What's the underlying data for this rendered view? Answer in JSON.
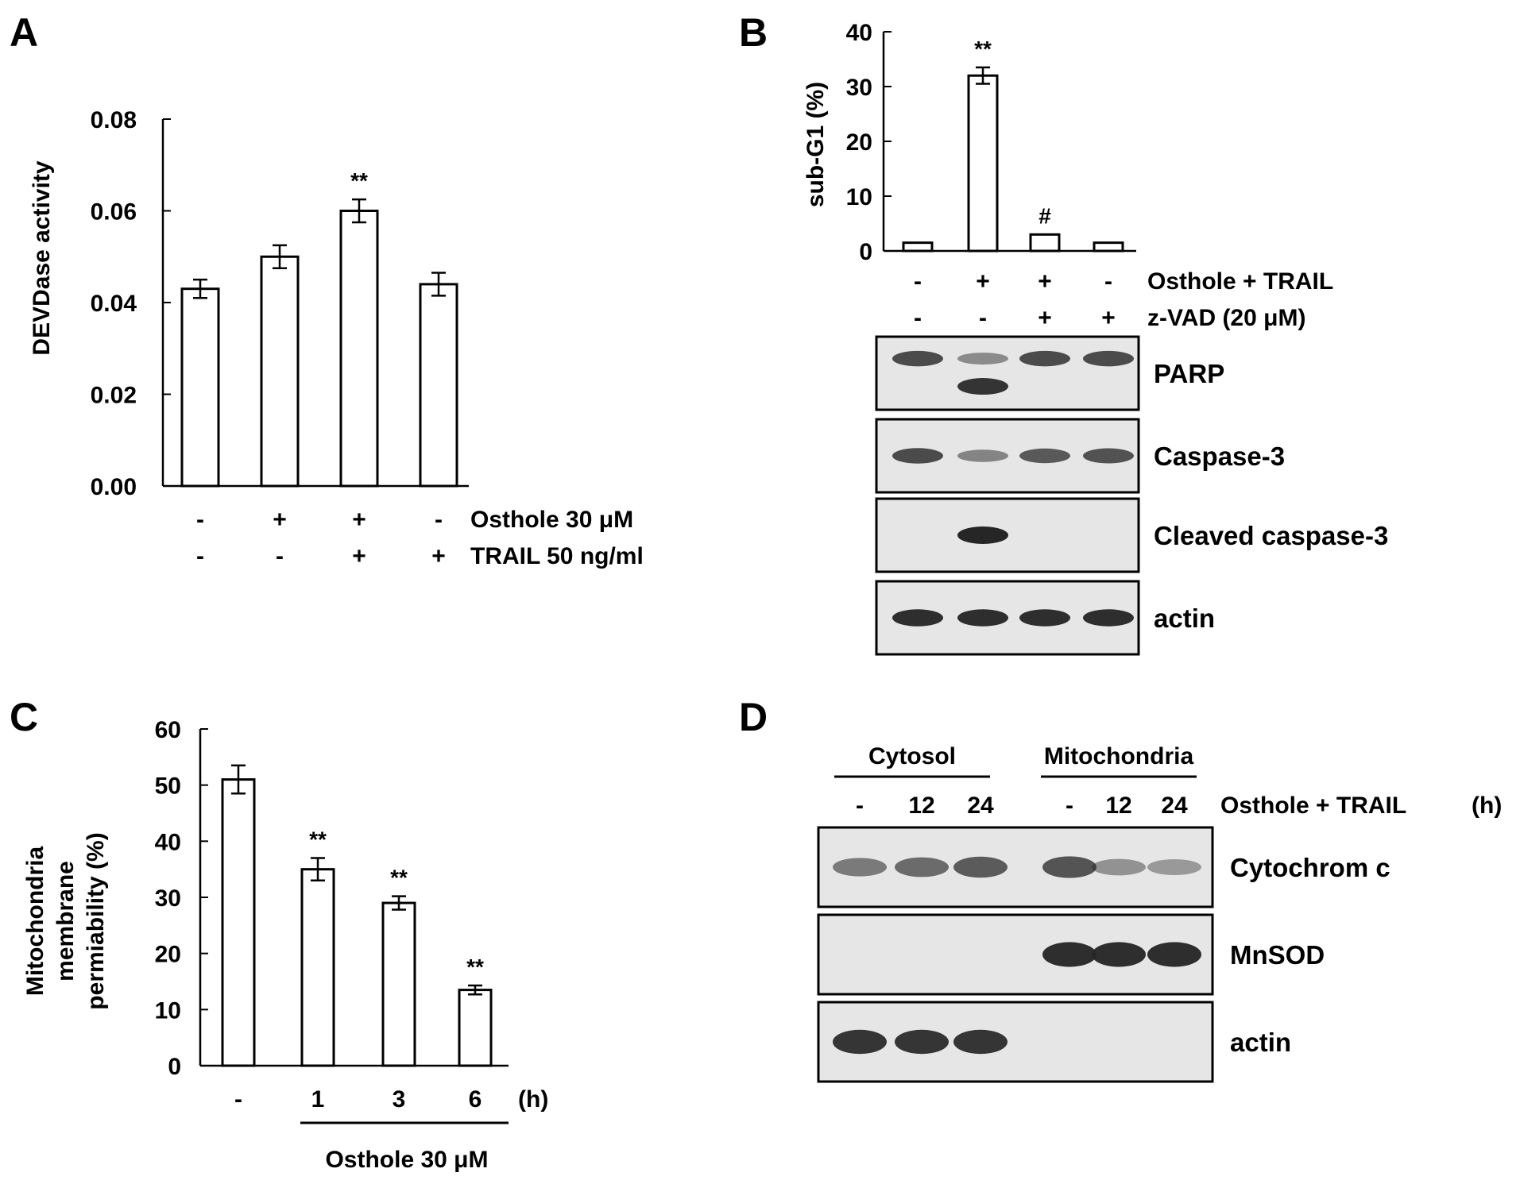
{
  "colors": {
    "ink": "#000000",
    "bar_fill": "#ffffff",
    "blot_bg": "#e6e6e6",
    "band": "#262626"
  },
  "chart_data": [
    {
      "panel": "A",
      "type": "bar",
      "ylabel": "DEVDase activity",
      "ylim": [
        0,
        0.08
      ],
      "yticks": [
        "0.00",
        "0.02",
        "0.04",
        "0.06",
        "0.08"
      ],
      "values": [
        0.043,
        0.05,
        0.06,
        0.044
      ],
      "errors": [
        0.002,
        0.0025,
        0.0025,
        0.0025
      ],
      "significance": [
        "",
        "",
        "**",
        ""
      ],
      "conditions": [
        {
          "label": "Osthole 30 μM",
          "signs": [
            "-",
            "+",
            "+",
            "-"
          ]
        },
        {
          "label": "TRAIL 50 ng/ml",
          "signs": [
            "-",
            "-",
            "+",
            "+"
          ]
        }
      ]
    },
    {
      "panel": "B",
      "type": "bar",
      "ylabel": "sub-G1 (%)",
      "ylim": [
        0,
        40
      ],
      "yticks": [
        "0",
        "10",
        "20",
        "30",
        "40"
      ],
      "values": [
        1.5,
        32,
        3,
        1.5
      ],
      "errors": [
        0,
        1.5,
        0,
        0
      ],
      "significance": [
        "",
        "**",
        "#",
        ""
      ],
      "conditions": [
        {
          "label": "Osthole + TRAIL",
          "signs": [
            "-",
            "+",
            "+",
            "-"
          ]
        },
        {
          "label": "z-VAD (20 μM)",
          "signs": [
            "-",
            "-",
            "+",
            "+"
          ]
        }
      ],
      "blots": [
        {
          "label": "PARP",
          "bands": [
            [
              0.75,
              0.3,
              0.75,
              0.75
            ],
            [
              0,
              0.9,
              0,
              0
            ]
          ]
        },
        {
          "label": "Caspase-3",
          "bands": [
            [
              0.75,
              0.35,
              0.65,
              0.7
            ]
          ]
        },
        {
          "label": "Cleaved caspase-3",
          "bands": [
            [
              0,
              1.0,
              0,
              0
            ]
          ]
        },
        {
          "label": "actin",
          "bands": [
            [
              0.95,
              0.95,
              0.95,
              0.95
            ]
          ]
        }
      ]
    },
    {
      "panel": "C",
      "type": "bar",
      "ylabel": [
        "Mitochondria",
        "membrane",
        "permiability (%)"
      ],
      "ylim": [
        0,
        60
      ],
      "yticks": [
        "0",
        "10",
        "20",
        "30",
        "40",
        "50",
        "60"
      ],
      "categories": [
        "-",
        "1",
        "3",
        "6"
      ],
      "unit": "(h)",
      "xlabel": "Osthole 30 μM",
      "values": [
        51,
        35,
        29,
        13.5
      ],
      "errors": [
        2.5,
        2,
        1.2,
        0.8
      ],
      "significance": [
        "",
        "**",
        "**",
        "**"
      ]
    },
    {
      "panel": "D",
      "type": "blot",
      "groups": [
        "Cytosol",
        "Mitochondria"
      ],
      "lanes": [
        "-",
        "12",
        "24",
        "-",
        "12",
        "24"
      ],
      "condition": "Osthole + TRAIL",
      "unit": "(h)",
      "blots": [
        {
          "label": "Cytochrom c",
          "bands": [
            [
              0.45,
              0.55,
              0.65,
              0.7,
              0.3,
              0.25
            ]
          ]
        },
        {
          "label": "MnSOD",
          "bands": [
            [
              0,
              0,
              0,
              0.95,
              0.95,
              0.95
            ]
          ]
        },
        {
          "label": "actin",
          "bands": [
            [
              0.9,
              0.9,
              0.9,
              0,
              0,
              0
            ]
          ]
        }
      ]
    }
  ]
}
